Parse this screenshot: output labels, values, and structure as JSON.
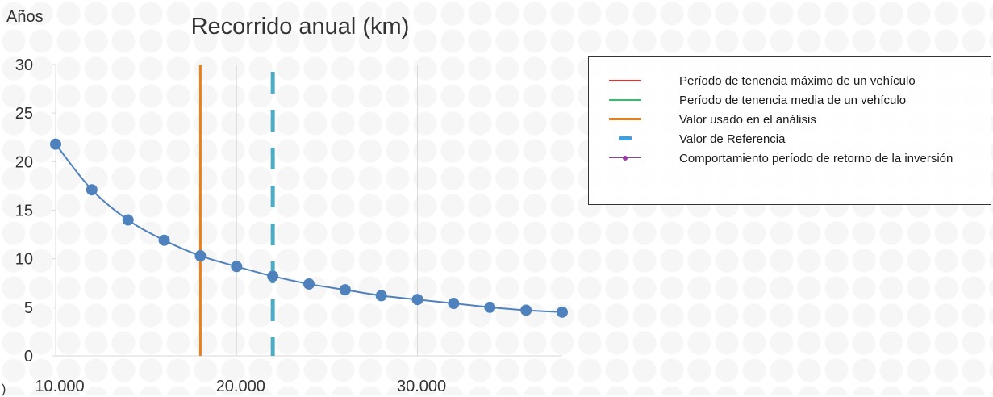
{
  "chart_data": {
    "type": "line",
    "title": "Recorrido anual (km)",
    "ylabel": "Años",
    "xlim": [
      10000,
      38000
    ],
    "ylim": [
      0,
      30
    ],
    "x_ticks": [
      10000,
      20000,
      30000
    ],
    "x_tick_labels": [
      "10.000",
      "20.000",
      "30.000"
    ],
    "y_ticks": [
      0,
      5,
      10,
      15,
      20,
      25,
      30
    ],
    "y_tick_labels": [
      "0",
      "5",
      "10",
      "15",
      "20",
      "25",
      "30"
    ],
    "grid": {
      "vertical": true,
      "horizontal": false
    },
    "series": [
      {
        "name": "Comportamiento período de retorno de la inversión",
        "color": "#4f81bd",
        "x": [
          10000,
          12000,
          14000,
          16000,
          18000,
          20000,
          22000,
          24000,
          26000,
          28000,
          30000,
          32000,
          34000,
          36000,
          38000
        ],
        "y": [
          21.8,
          17.1,
          14.0,
          11.9,
          10.3,
          9.2,
          8.2,
          7.4,
          6.8,
          6.2,
          5.8,
          5.4,
          5.0,
          4.7,
          4.5
        ]
      }
    ],
    "reference_lines": [
      {
        "name": "Valor usado en el análisis",
        "x": 18000,
        "color": "#e8811a",
        "style": "solid"
      },
      {
        "name": "Valor de Referencia",
        "x": 22000,
        "color": "#4bacc6",
        "style": "dashed"
      }
    ],
    "legend": {
      "placement": "right",
      "entries": [
        {
          "label": "Período de tenencia máximo de un vehículo",
          "color": "#e03030",
          "style": "line"
        },
        {
          "label": "Período de tenencia media de un vehículo",
          "color": "#2cc36b",
          "style": "line"
        },
        {
          "label": "Valor usado en el análisis",
          "color": "#e8811a",
          "style": "thick-line"
        },
        {
          "label": "Valor de Referencia",
          "color": "#3aa0e0",
          "style": "dash"
        },
        {
          "label": "Comportamiento período de retorno de la inversión",
          "color": "#9b39a8",
          "style": "line-marker"
        }
      ]
    }
  },
  "edge_mark": ")"
}
